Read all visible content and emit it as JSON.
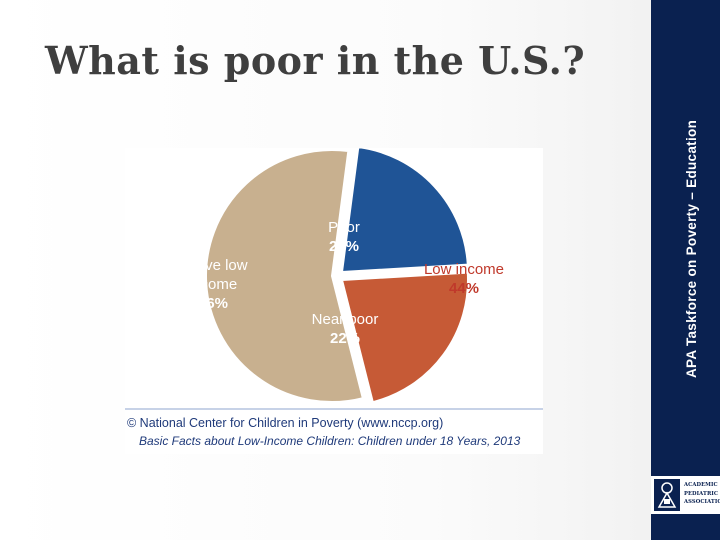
{
  "slide": {
    "title": "What is poor in the U.S.?",
    "sidebar_text": "APA Taskforce on Poverty – Education",
    "logo_lines": [
      "ACADEMIC",
      "PEDIATRIC",
      "ASSOCIATION"
    ]
  },
  "chart_data": {
    "type": "pie",
    "slices": [
      {
        "label": "Poor",
        "value": 22,
        "value_label": "22%",
        "color": "#1f5496"
      },
      {
        "label": "Near poor",
        "value": 22,
        "value_label": "22%",
        "color": "#c65a36"
      },
      {
        "label": "Above low income",
        "value": 56,
        "value_label": "56%",
        "color": "#c8b08f"
      }
    ],
    "group_annotation": {
      "label": "Low income",
      "value_label": "44%",
      "color": "#c0392b"
    },
    "source_line1": "© National Center for Children in Poverty (www.nccp.org)",
    "source_line2": "Basic Facts about Low-Income Children: Children under 18 Years, 2013"
  }
}
